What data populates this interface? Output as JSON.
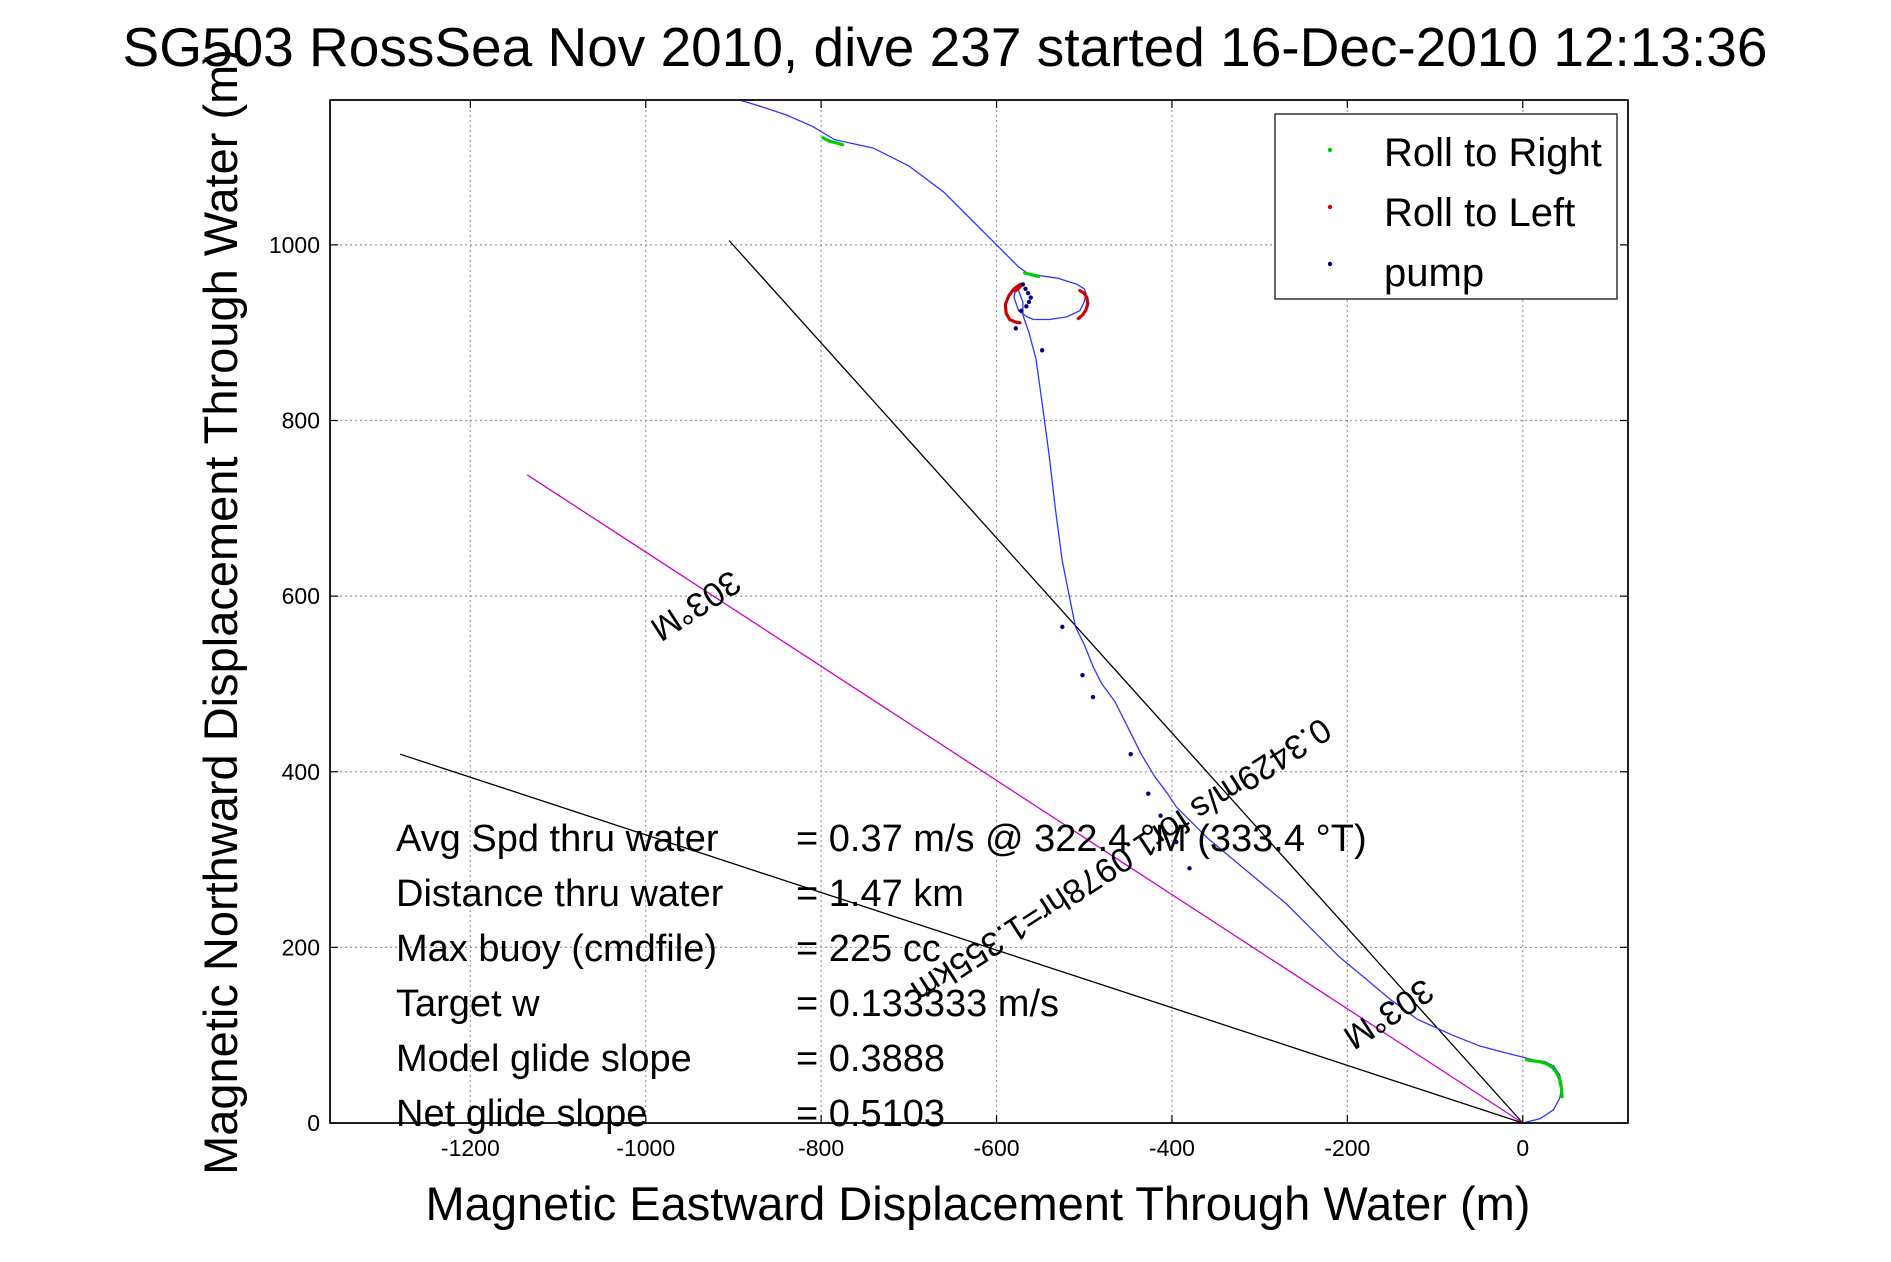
{
  "chart_data": {
    "type": "line",
    "title": "SG503 RossSea Nov 2010, dive 237 started 16-Dec-2010 12:13:36",
    "xlabel": "Magnetic Eastward Displacement Through Water (m)",
    "ylabel": "Magnetic Northward Displacement Through Water (m)",
    "xlim": [
      -1360,
      120
    ],
    "ylim": [
      0,
      1165
    ],
    "xticks": [
      -1200,
      -1000,
      -800,
      -600,
      -400,
      -200,
      0
    ],
    "yticks": [
      0,
      200,
      400,
      600,
      800,
      1000
    ],
    "grid": true,
    "legend_position": "top-right",
    "legend": [
      {
        "label": "Roll to Right",
        "color": "#00cc00"
      },
      {
        "label": "Roll to Left",
        "color": "#cc0000"
      },
      {
        "label": "pump",
        "color": "#000080"
      }
    ],
    "series": [
      {
        "color": "#3333ff",
        "x": [
          0,
          20,
          35,
          42,
          45,
          42,
          35,
          25,
          15,
          0,
          -20,
          -50,
          -80,
          -120,
          -150,
          -180,
          -210,
          -240,
          -270,
          -300,
          -330,
          -360,
          -380,
          -395,
          -405,
          -420,
          -435,
          -450,
          -465,
          -480,
          -490,
          -500,
          -510,
          -517,
          -525,
          -533,
          -540,
          -548,
          -555,
          -563,
          -570,
          -570,
          -575,
          -578,
          -580,
          -575,
          -565,
          -558,
          -540,
          -520,
          -505,
          -500,
          -498,
          -500,
          -508,
          -530,
          -550,
          -560,
          -565,
          -575,
          -590,
          -610,
          -630,
          -660,
          -700,
          -740,
          -785,
          -810,
          -840,
          -870,
          -893
        ],
        "y": [
          0,
          5,
          15,
          28,
          42,
          55,
          65,
          70,
          71,
          75,
          80,
          88,
          100,
          118,
          140,
          165,
          190,
          220,
          250,
          275,
          300,
          325,
          345,
          360,
          375,
          395,
          420,
          450,
          480,
          500,
          520,
          545,
          565,
          600,
          640,
          700,
          760,
          820,
          870,
          900,
          920,
          935,
          948,
          952,
          940,
          925,
          918,
          915,
          915,
          918,
          925,
          935,
          945,
          950,
          955,
          962,
          965,
          967,
          968,
          975,
          990,
          1010,
          1030,
          1060,
          1090,
          1110,
          1120,
          1135,
          1148,
          1158,
          1165
        ]
      }
    ],
    "roll_right_segments": [
      {
        "x": [
          45,
          44,
          42,
          38,
          33,
          26,
          18,
          10,
          4
        ],
        "y": [
          30,
          40,
          50,
          58,
          64,
          68,
          70,
          71,
          72
        ]
      },
      {
        "x": [
          -798,
          -790,
          -782,
          -775
        ],
        "y": [
          1122,
          1118,
          1116,
          1114
        ]
      },
      {
        "x": [
          -568,
          -560,
          -552
        ],
        "y": [
          968,
          966,
          964
        ]
      }
    ],
    "roll_left_segments": [
      {
        "x": [
          -573,
          -580,
          -586,
          -590,
          -589,
          -585,
          -578,
          -572
        ],
        "y": [
          955,
          950,
          942,
          932,
          922,
          915,
          912,
          911
        ]
      },
      {
        "x": [
          -505,
          -500,
          -497,
          -496,
          -498,
          -502,
          -508
        ],
        "y": [
          948,
          945,
          940,
          933,
          926,
          920,
          915
        ]
      },
      {
        "x": [
          -578,
          -573
        ],
        "y": [
          948,
          952
        ]
      }
    ],
    "pump_points": {
      "x": [
        -570,
        -567,
        -564,
        -561,
        -563,
        -566,
        -572,
        -578,
        -525,
        -502,
        -490,
        -447,
        -427,
        -413,
        -395,
        -380,
        -548
      ],
      "y": [
        955,
        950,
        945,
        940,
        935,
        930,
        925,
        905,
        565,
        510,
        485,
        420,
        375,
        350,
        320,
        290,
        880
      ]
    },
    "reference_lines": [
      {
        "color": "#000000",
        "x": [
          0,
          -1280
        ],
        "y": [
          0,
          420
        ]
      },
      {
        "color": "#000000",
        "x": [
          0,
          -905
        ],
        "y": [
          0,
          1005
        ]
      },
      {
        "color": "#cc00cc",
        "x": [
          0,
          -1135
        ],
        "y": [
          0,
          738
        ]
      }
    ],
    "vector_annotations": [
      {
        "text": "303°M",
        "x": -950,
        "y": 600,
        "angle": -33
      },
      {
        "text": "0.3429m/s for1.0978hr=1.355km",
        "x": -465,
        "y": 310,
        "angle": -33
      },
      {
        "text": "303°M",
        "x": -160,
        "y": 135,
        "angle": -33
      }
    ],
    "stats": [
      {
        "label": "Avg Spd thru water",
        "value": "=  0.37 m/s @ 322.4 °M (333.4 °T)"
      },
      {
        "label": "Distance thru water",
        "value": "=  1.47 km"
      },
      {
        "label": "Max buoy (cmdfile)",
        "value": "= 225 cc"
      },
      {
        "label": "Target w",
        "value": "= 0.133333 m/s"
      },
      {
        "label": "Model glide slope",
        "value": "= 0.3888"
      },
      {
        "label": "Net glide slope",
        "value": "= 0.5103"
      }
    ]
  }
}
